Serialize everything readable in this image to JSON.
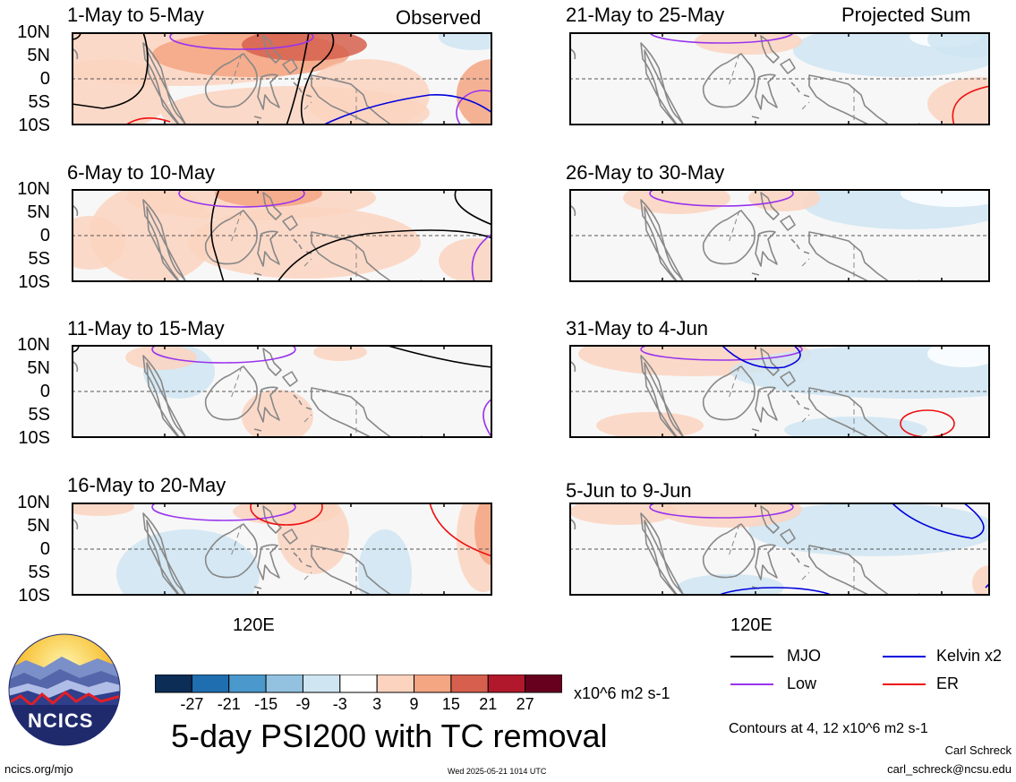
{
  "figure": {
    "title": "5-day PSI200 with TC removal",
    "contour_note": "Contours at 4, 12 x10^6 m2 s-1",
    "author": "Carl Schreck",
    "email": "carl_schreck@ncsu.edu",
    "url": "ncics.org/mjo",
    "timestamp": "Wed 2025-05-21 1014 UTC",
    "logo_text": "NCICS"
  },
  "left_column_tag": "Observed",
  "right_column_tag": "Projected Sum",
  "panels_left": [
    {
      "title": "1-May to 5-May"
    },
    {
      "title": "6-May to 10-May"
    },
    {
      "title": "11-May to 15-May"
    },
    {
      "title": "16-May to 20-May"
    }
  ],
  "panels_right": [
    {
      "title": "21-May to 25-May"
    },
    {
      "title": "26-May to 30-May"
    },
    {
      "title": "31-May to 4-Jun"
    },
    {
      "title": "5-Jun to 9-Jun"
    }
  ],
  "lat_labels": [
    "10N",
    "5N",
    "0",
    "5S",
    "10S"
  ],
  "lon_label": "120E",
  "colorbar": {
    "unit": "x10^6 m2 s-1",
    "tick_labels": [
      "-27",
      "-21",
      "-15",
      "-9",
      "-3",
      "3",
      "9",
      "15",
      "21",
      "27"
    ],
    "colors": [
      "#0b2d56",
      "#1f6eb0",
      "#4a98cc",
      "#92c2e0",
      "#cfe5f2",
      "#ffffff",
      "#fbd3bf",
      "#f4a582",
      "#d6604d",
      "#b2182b",
      "#67001f"
    ]
  },
  "legend": {
    "mjo": "MJO",
    "kelvin": "Kelvin x2",
    "low": "Low",
    "er": "ER",
    "colors": {
      "mjo": "#000000",
      "kelvin": "#0000dd",
      "low": "#9933ee",
      "er": "#ee1111"
    }
  }
}
